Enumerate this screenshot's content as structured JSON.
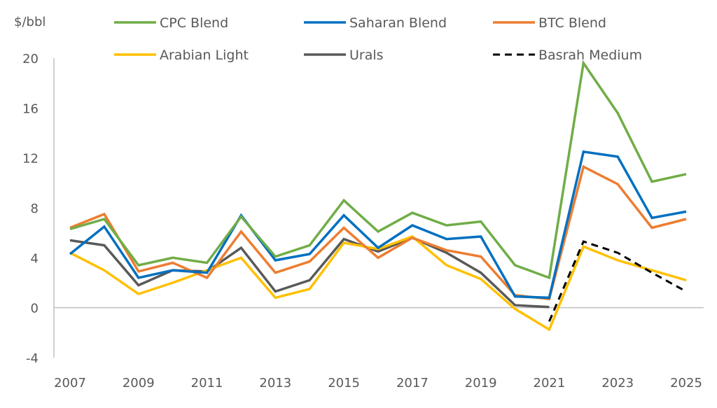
{
  "chart_data": {
    "type": "line",
    "title": "",
    "unit_label": "$/bbl",
    "xlabel": "",
    "ylabel": "$/bbl",
    "x": [
      2007,
      2008,
      2009,
      2010,
      2011,
      2012,
      2013,
      2014,
      2015,
      2016,
      2017,
      2018,
      2019,
      2020,
      2021,
      2022,
      2023,
      2024,
      2025
    ],
    "x_tick_labels": [
      "2007",
      "2009",
      "2011",
      "2013",
      "2015",
      "2017",
      "2019",
      "2021",
      "2023",
      "2025"
    ],
    "ylim": [
      -4,
      20
    ],
    "y_ticks": [
      -4,
      0,
      4,
      8,
      12,
      16,
      20
    ],
    "y_tick_labels": [
      "-4",
      "0",
      "4",
      "8",
      "12",
      "16",
      "20"
    ],
    "grid": false,
    "legend_position": "top",
    "series": [
      {
        "name": "CPC Blend",
        "color": "#70AD47",
        "dash": "solid",
        "values": [
          6.3,
          7.1,
          3.4,
          4.0,
          3.6,
          7.3,
          4.1,
          5.0,
          8.6,
          6.1,
          7.6,
          6.6,
          6.9,
          3.4,
          2.4,
          19.6,
          15.6,
          10.1,
          10.7
        ]
      },
      {
        "name": "Saharan Blend",
        "color": "#0070C0",
        "dash": "solid",
        "values": [
          4.3,
          6.5,
          2.4,
          3.0,
          2.8,
          7.4,
          3.8,
          4.3,
          7.4,
          4.8,
          6.6,
          5.5,
          5.7,
          0.9,
          0.8,
          12.5,
          12.1,
          7.2,
          7.7
        ]
      },
      {
        "name": "BTC Blend",
        "color": "#ED7D31",
        "dash": "solid",
        "values": [
          6.4,
          7.5,
          2.9,
          3.6,
          2.4,
          6.1,
          2.8,
          3.7,
          6.4,
          4.0,
          5.6,
          4.6,
          4.1,
          1.0,
          0.7,
          11.3,
          9.9,
          6.4,
          7.1
        ]
      },
      {
        "name": "Arabian Light",
        "color": "#FFC000",
        "dash": "solid",
        "values": [
          4.4,
          3.0,
          1.1,
          2.0,
          3.0,
          4.0,
          0.8,
          1.5,
          5.2,
          4.7,
          5.7,
          3.4,
          2.3,
          -0.1,
          -1.75,
          4.9,
          3.8,
          3.0,
          2.2
        ]
      },
      {
        "name": "Urals",
        "color": "#595959",
        "dash": "solid",
        "values": [
          5.4,
          5.0,
          1.8,
          3.0,
          2.9,
          4.8,
          1.3,
          2.2,
          5.5,
          4.5,
          5.6,
          4.4,
          2.8,
          0.2,
          0.05,
          null,
          null,
          null,
          null
        ]
      },
      {
        "name": "Basrah Medium",
        "color": "#000000",
        "dash": "dashed",
        "values": [
          null,
          null,
          null,
          null,
          null,
          null,
          null,
          null,
          null,
          null,
          null,
          null,
          null,
          null,
          -1.1,
          5.3,
          4.4,
          2.8,
          1.3
        ]
      }
    ],
    "draw_order": [
      "Urals",
      "Arabian Light",
      "BTC Blend",
      "Saharan Blend",
      "CPC Blend",
      "Basrah Medium"
    ]
  }
}
